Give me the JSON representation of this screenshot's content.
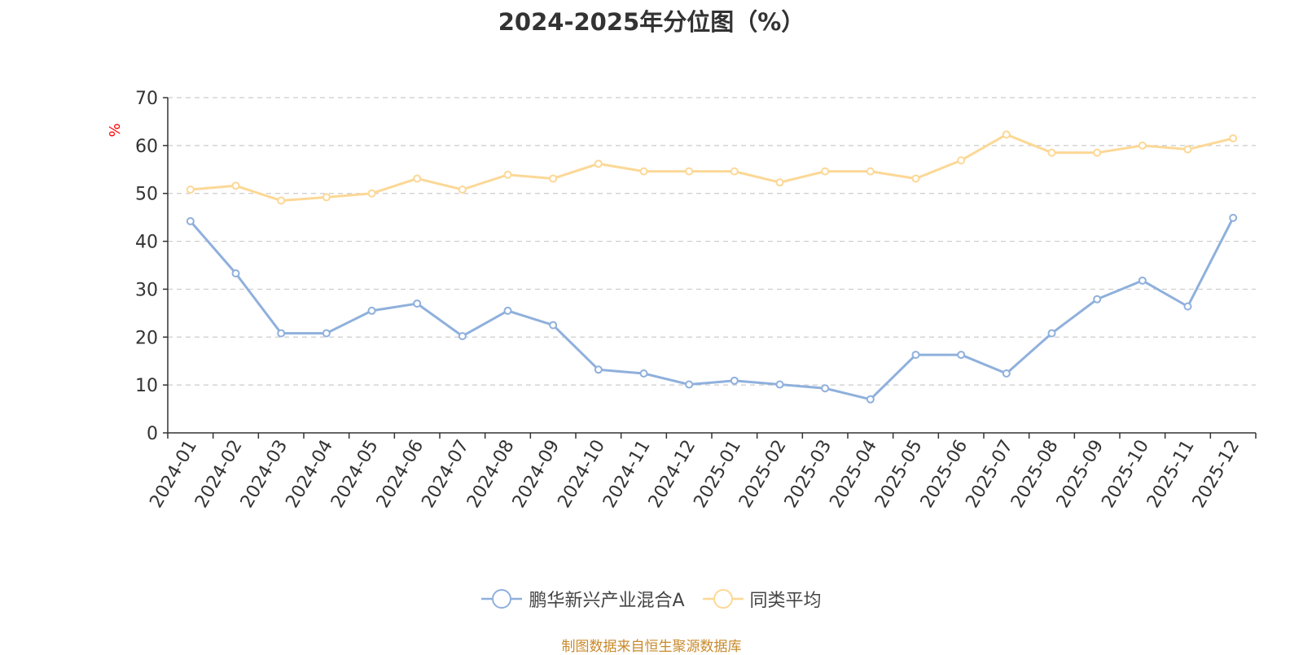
{
  "page": {
    "title": "2024-2025年分位图（%）",
    "footer": "制图数据来自恒生聚源数据库"
  },
  "colors": {
    "series1": "#8fb0dc",
    "series2": "#fcd896",
    "axis": "#333333",
    "grid": "#cccccc",
    "unit": "#ff0000",
    "footer": "#c98a2b"
  },
  "chart_data": {
    "type": "line",
    "title": "2024-2025年分位图（%）",
    "ylabel": "%",
    "ylim": [
      0,
      70
    ],
    "yticks": [
      0,
      10,
      20,
      30,
      40,
      50,
      60,
      70
    ],
    "grid": true,
    "legend_position": "bottom",
    "categories": [
      "2024-01",
      "2024-02",
      "2024-03",
      "2024-04",
      "2024-05",
      "2024-06",
      "2024-07",
      "2024-08",
      "2024-09",
      "2024-10",
      "2024-11",
      "2024-12",
      "2025-01",
      "2025-02",
      "2025-03",
      "2025-04",
      "2025-05",
      "2025-06",
      "2025-07",
      "2025-08",
      "2025-09",
      "2025-10",
      "2025-11",
      "2025-12"
    ],
    "series": [
      {
        "name": "鹏华新兴产业混合A",
        "color": "#8fb0dc",
        "values": [
          44.2,
          33.3,
          20.8,
          20.8,
          25.5,
          27.0,
          20.2,
          25.5,
          22.5,
          13.2,
          12.4,
          10.1,
          10.9,
          10.1,
          9.3,
          7.0,
          16.3,
          16.3,
          12.4,
          20.8,
          27.9,
          31.8,
          26.4,
          44.9
        ]
      },
      {
        "name": "同类平均",
        "color": "#fcd896",
        "values": [
          50.8,
          51.6,
          48.5,
          49.2,
          50.0,
          53.1,
          50.8,
          53.9,
          53.1,
          56.2,
          54.6,
          54.6,
          54.6,
          52.3,
          54.6,
          54.6,
          53.1,
          56.9,
          62.3,
          58.5,
          58.5,
          60.0,
          59.2,
          61.5
        ]
      }
    ]
  }
}
